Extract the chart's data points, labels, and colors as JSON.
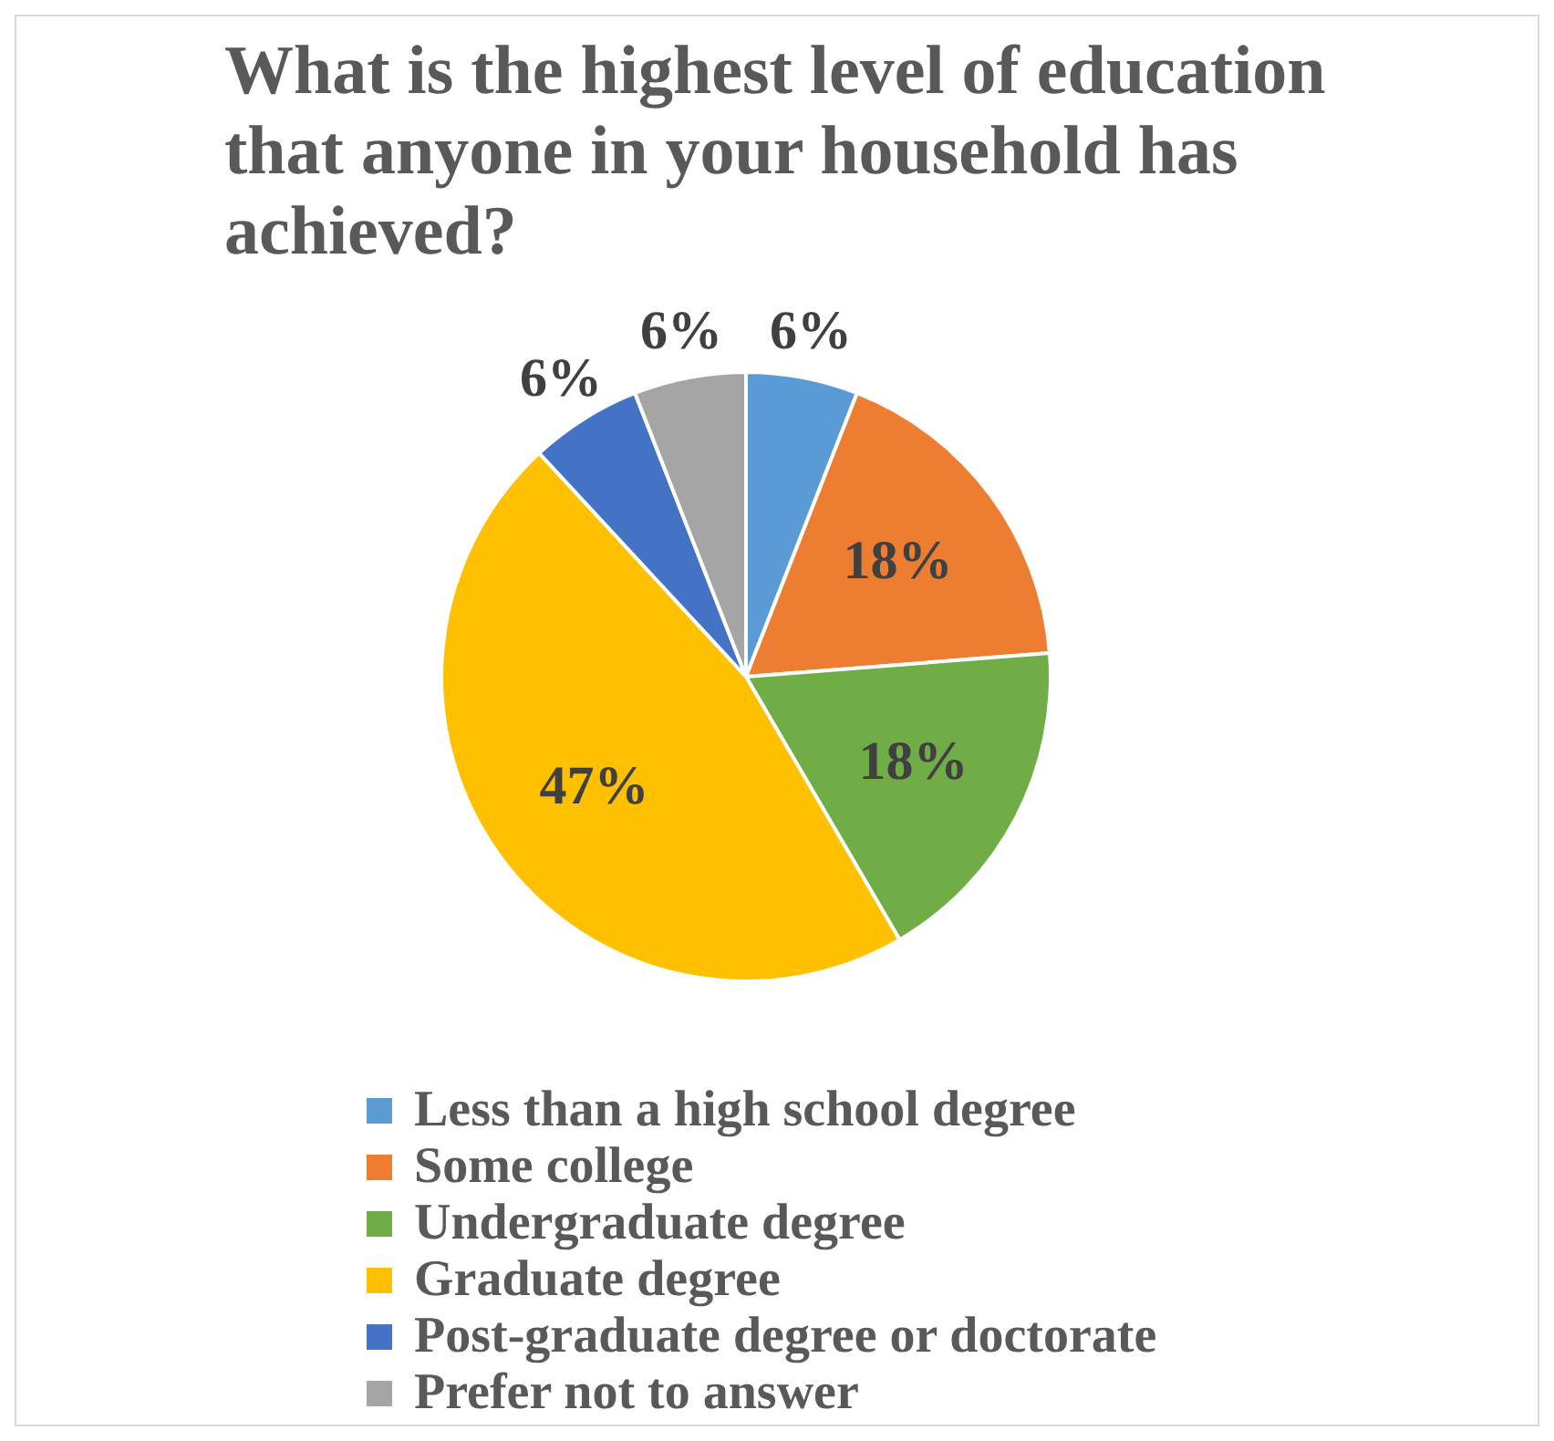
{
  "chart_data": {
    "type": "pie",
    "title": "What is the highest level of education that anyone in your household has achieved?",
    "categories": [
      "Less than a high school degree",
      "Some college",
      "Undergraduate degree",
      "Graduate degree",
      "Post-graduate degree or doctorate",
      "Prefer not to answer"
    ],
    "values": [
      6,
      18,
      18,
      47,
      6,
      6
    ],
    "colors": [
      "#5b9bd5",
      "#ed7d31",
      "#70ad47",
      "#ffc000",
      "#4472c4",
      "#a5a5a5"
    ],
    "value_labels": [
      "6%",
      "18%",
      "18%",
      "47%",
      "6%",
      "6%"
    ],
    "legend": "bottom"
  }
}
